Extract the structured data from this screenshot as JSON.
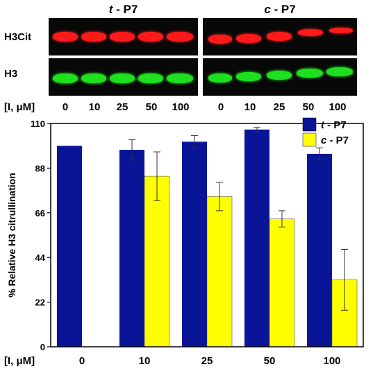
{
  "blot": {
    "left_title_prefix": "t",
    "left_title_suffix": " - P7",
    "right_title_prefix": "c",
    "right_title_suffix": " - P7",
    "rows": [
      "H3Cit",
      "H3"
    ],
    "conc_label": "[I, μM]",
    "lane_labels": [
      "0",
      "10",
      "25",
      "50",
      "100",
      "0",
      "10",
      "25",
      "50",
      "100"
    ],
    "colors": {
      "red_band": "#ff1a1a",
      "green_band": "#1fe01f",
      "panel": "#080808"
    }
  },
  "chart_data": {
    "type": "bar",
    "categories": [
      "0",
      "10",
      "25",
      "50",
      "100"
    ],
    "category_axis_label": "[I, μM]",
    "ylabel": "% Relative H3 citrullination",
    "ylim": [
      0,
      110
    ],
    "yticks": [
      "0",
      "22",
      "44",
      "66",
      "88",
      "110"
    ],
    "legend_position": "top-right",
    "series": [
      {
        "name_prefix": "t",
        "name_suffix": " - P7",
        "color": "#0a1496",
        "values": [
          99,
          97,
          101,
          107,
          95
        ],
        "errors": [
          0,
          5,
          3,
          1,
          3
        ]
      },
      {
        "name_prefix": "c",
        "name_suffix": " - P7",
        "color": "#ffff00",
        "values": [
          null,
          84,
          74,
          63,
          33
        ],
        "errors": [
          null,
          12,
          7,
          4,
          15
        ]
      }
    ]
  }
}
